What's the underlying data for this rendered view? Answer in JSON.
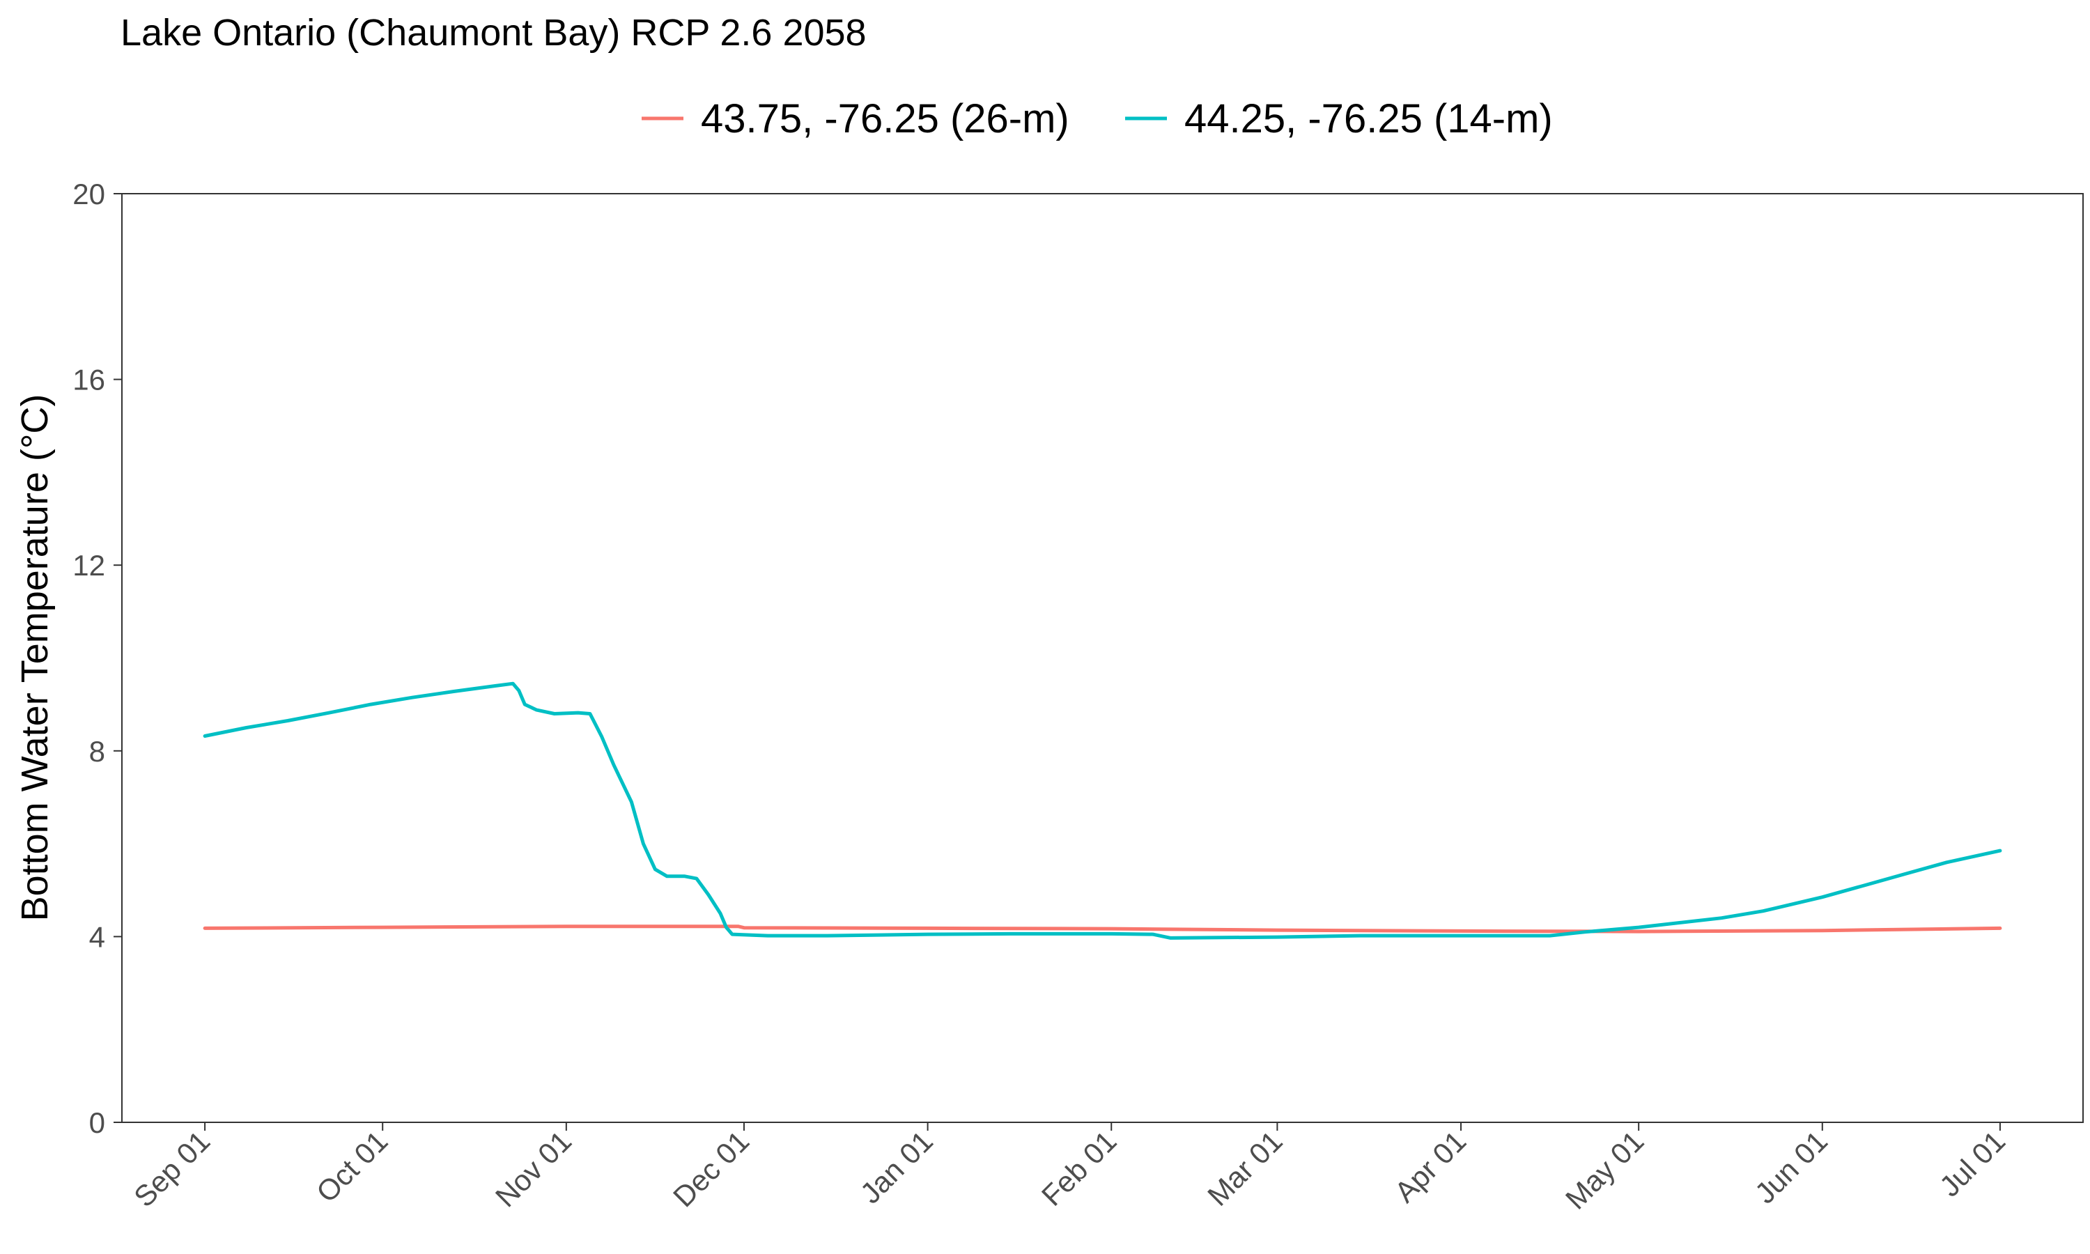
{
  "chart_data": {
    "type": "line",
    "title": "Lake Ontario (Chaumont Bay) RCP 2.6 2058",
    "xlabel": "",
    "ylabel": "Bottom Water Temperature (°C)",
    "x_ticks": [
      "Sep 01",
      "Oct 01",
      "Nov 01",
      "Dec 01",
      "Jan 01",
      "Feb 01",
      "Mar 01",
      "Apr 01",
      "May 01",
      "Jun 01",
      "Jul 01"
    ],
    "ylim": [
      0,
      20
    ],
    "y_ticks": [
      "0",
      "4",
      "8",
      "12",
      "16",
      "20"
    ],
    "legend_position": "top",
    "grid": false,
    "series": [
      {
        "name": "43.75, -76.25 (26-m)",
        "color": "#F8766D",
        "points": [
          [
            "2058-09-01",
            4.18
          ],
          [
            "2058-10-01",
            4.2
          ],
          [
            "2058-11-01",
            4.22
          ],
          [
            "2058-11-30",
            4.22
          ],
          [
            "2058-12-01",
            4.19
          ],
          [
            "2059-01-01",
            4.18
          ],
          [
            "2059-02-01",
            4.17
          ],
          [
            "2059-03-01",
            4.14
          ],
          [
            "2059-04-01",
            4.12
          ],
          [
            "2059-05-01",
            4.11
          ],
          [
            "2059-06-01",
            4.13
          ],
          [
            "2059-07-01",
            4.18
          ]
        ]
      },
      {
        "name": "44.25, -76.25 (14-m)",
        "color": "#00BFC4",
        "points": [
          [
            "2058-09-01",
            8.32
          ],
          [
            "2058-09-08",
            8.5
          ],
          [
            "2058-09-15",
            8.65
          ],
          [
            "2058-09-22",
            8.82
          ],
          [
            "2058-09-29",
            9.0
          ],
          [
            "2058-10-06",
            9.15
          ],
          [
            "2058-10-13",
            9.28
          ],
          [
            "2058-10-20",
            9.4
          ],
          [
            "2058-10-23",
            9.45
          ],
          [
            "2058-10-24",
            9.3
          ],
          [
            "2058-10-25",
            9.0
          ],
          [
            "2058-10-27",
            8.88
          ],
          [
            "2058-10-30",
            8.8
          ],
          [
            "2058-11-03",
            8.82
          ],
          [
            "2058-11-05",
            8.8
          ],
          [
            "2058-11-07",
            8.3
          ],
          [
            "2058-11-09",
            7.7
          ],
          [
            "2058-11-12",
            6.9
          ],
          [
            "2058-11-14",
            6.0
          ],
          [
            "2058-11-16",
            5.45
          ],
          [
            "2058-11-18",
            5.3
          ],
          [
            "2058-11-21",
            5.3
          ],
          [
            "2058-11-23",
            5.25
          ],
          [
            "2058-11-25",
            4.9
          ],
          [
            "2058-11-27",
            4.5
          ],
          [
            "2058-11-28",
            4.2
          ],
          [
            "2058-11-29",
            4.05
          ],
          [
            "2058-12-05",
            4.02
          ],
          [
            "2058-12-15",
            4.02
          ],
          [
            "2059-01-01",
            4.05
          ],
          [
            "2059-01-15",
            4.06
          ],
          [
            "2059-02-01",
            4.06
          ],
          [
            "2059-02-08",
            4.05
          ],
          [
            "2059-02-11",
            3.97
          ],
          [
            "2059-03-01",
            3.99
          ],
          [
            "2059-03-15",
            4.02
          ],
          [
            "2059-04-01",
            4.02
          ],
          [
            "2059-04-16",
            4.02
          ],
          [
            "2059-04-22",
            4.1
          ],
          [
            "2059-05-01",
            4.2
          ],
          [
            "2059-05-15",
            4.4
          ],
          [
            "2059-05-22",
            4.55
          ],
          [
            "2059-06-01",
            4.85
          ],
          [
            "2059-06-08",
            5.1
          ],
          [
            "2059-06-15",
            5.35
          ],
          [
            "2059-06-22",
            5.6
          ],
          [
            "2059-07-01",
            5.85
          ]
        ]
      }
    ]
  }
}
